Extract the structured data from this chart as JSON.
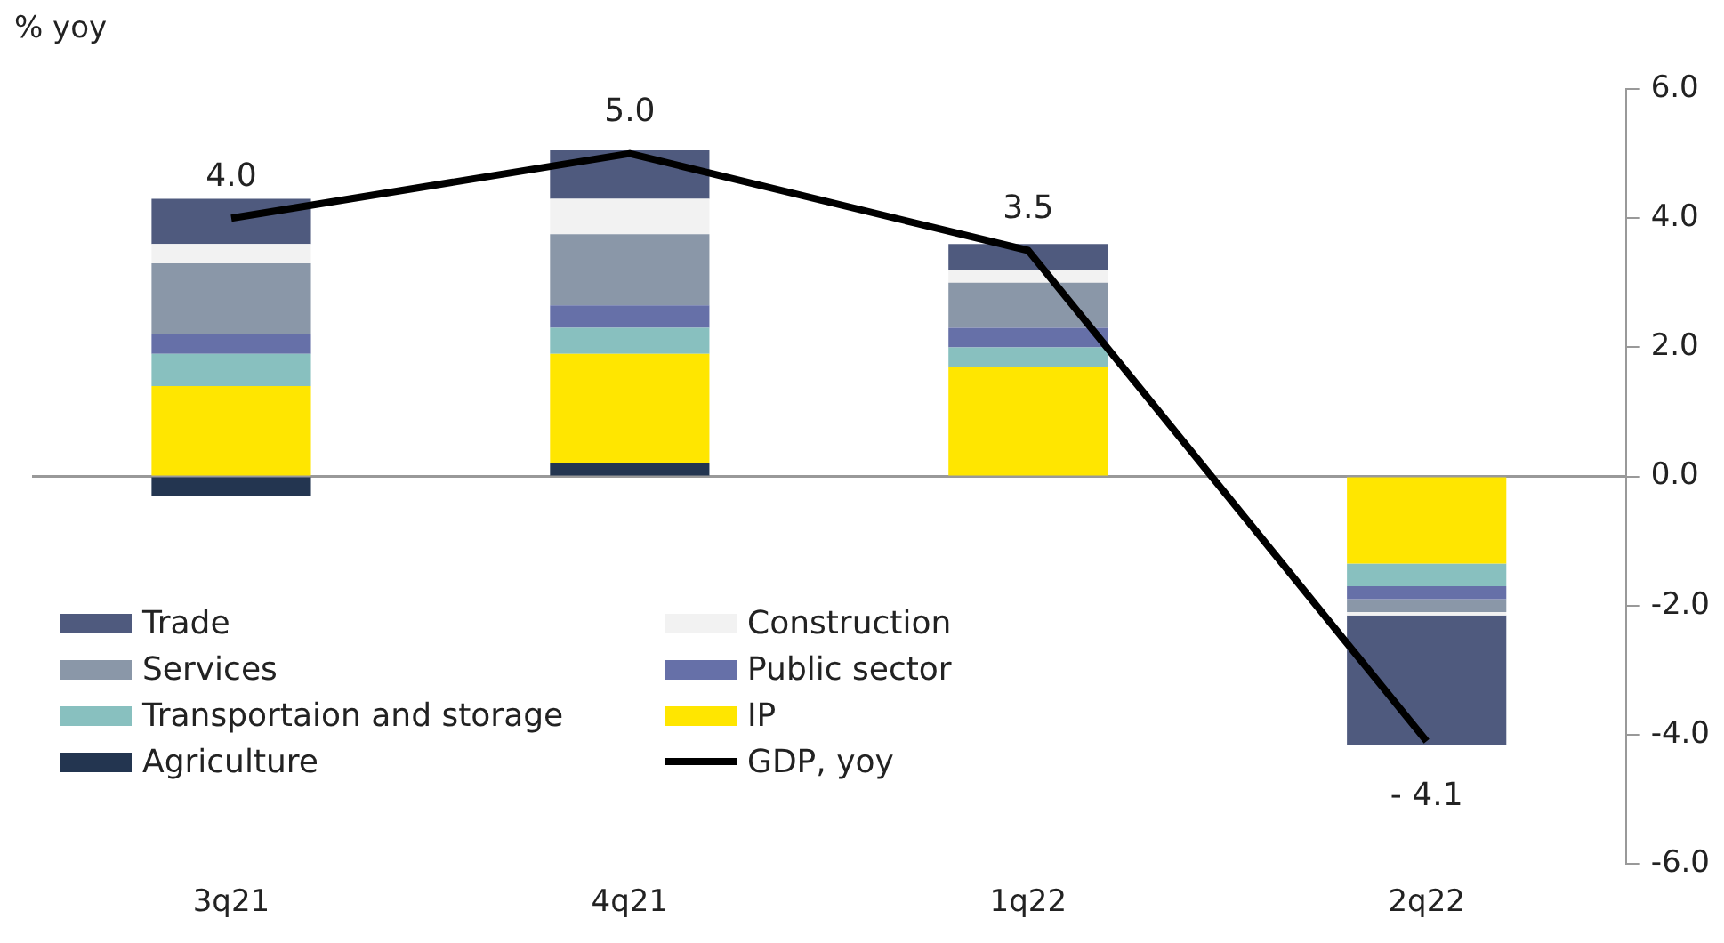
{
  "chart_data": {
    "type": "bar",
    "stacked": true,
    "ylabel": "% yoy",
    "categories": [
      "3q21",
      "4q21",
      "1q22",
      "2q22"
    ],
    "series": [
      {
        "name": "Agriculture",
        "color": "#233550",
        "values": [
          -0.3,
          0.2,
          0,
          0
        ]
      },
      {
        "name": "IP",
        "color": "#ffe600",
        "values": [
          1.4,
          1.7,
          1.7,
          -1.35
        ]
      },
      {
        "name": "Transportaion and storage",
        "color": "#88c0bf",
        "values": [
          0.5,
          0.4,
          0.3,
          -0.35
        ]
      },
      {
        "name": "Public sector",
        "color": "#6670a8",
        "values": [
          0.3,
          0.35,
          0.3,
          -0.2
        ]
      },
      {
        "name": "Services",
        "color": "#8a97a8",
        "values": [
          1.1,
          1.1,
          0.7,
          -0.2
        ]
      },
      {
        "name": "Construction",
        "color": "#f2f2f2",
        "values": [
          0.3,
          0.55,
          0.2,
          -0.05
        ]
      },
      {
        "name": "Trade",
        "color": "#4f5a7e",
        "values": [
          0.7,
          0.75,
          0.4,
          -2.0
        ]
      },
      {
        "name": "GDP, yoy",
        "type": "line",
        "color": "#000000",
        "values": [
          4.0,
          5.0,
          3.5,
          -4.1
        ],
        "value_labels": [
          "4.0",
          "5.0",
          "3.5",
          "- 4.1"
        ]
      }
    ],
    "ylim": [
      -6,
      6
    ],
    "yticks": [
      {
        "value": -6,
        "label": "-6.0"
      },
      {
        "value": -4,
        "label": "-4.0"
      },
      {
        "value": -2,
        "label": "-2.0"
      },
      {
        "value": 0,
        "label": "0.0"
      },
      {
        "value": 2,
        "label": "2.0"
      },
      {
        "value": 4,
        "label": "4.0"
      },
      {
        "value": 6,
        "label": "6.0"
      }
    ],
    "ref_lines": [
      {
        "axis": "y",
        "value": 0,
        "color": "#999999"
      }
    ],
    "grid": false,
    "legend": "bottom left",
    "marker": "none"
  }
}
